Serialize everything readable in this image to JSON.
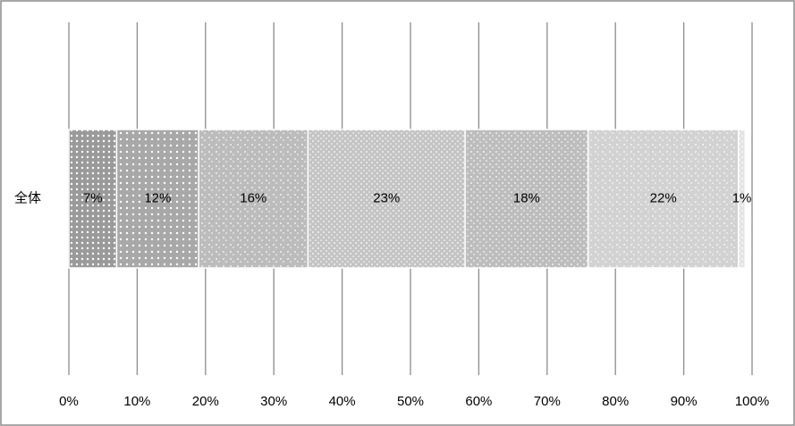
{
  "chart_data": {
    "type": "stacked-bar-horizontal",
    "categories": [
      "全体"
    ],
    "series": [
      {
        "color": "#9a9a9a",
        "values": [
          7
        ],
        "value_labels": [
          "7%"
        ]
      },
      {
        "color": "#a8a8a8",
        "values": [
          12
        ],
        "value_labels": [
          "12%"
        ]
      },
      {
        "color": "#bcbcbc",
        "values": [
          16
        ],
        "value_labels": [
          "16%"
        ]
      },
      {
        "color": "#c4c4c4",
        "values": [
          23
        ],
        "value_labels": [
          "23%"
        ]
      },
      {
        "color": "#bdbdbd",
        "values": [
          18
        ],
        "value_labels": [
          "18%"
        ]
      },
      {
        "color": "#d2d2d2",
        "values": [
          22
        ],
        "value_labels": [
          "22%"
        ]
      },
      {
        "color": "#e4e4e4",
        "values": [
          1
        ],
        "value_labels": [
          "1%"
        ]
      }
    ],
    "xlim": [
      0,
      100
    ],
    "xticks": [
      {
        "value": 0,
        "label": "0%"
      },
      {
        "value": 10,
        "label": "10%"
      },
      {
        "value": 20,
        "label": "20%"
      },
      {
        "value": 30,
        "label": "30%"
      },
      {
        "value": 40,
        "label": "40%"
      },
      {
        "value": 50,
        "label": "50%"
      },
      {
        "value": 60,
        "label": "60%"
      },
      {
        "value": 70,
        "label": "70%"
      },
      {
        "value": 80,
        "label": "80%"
      },
      {
        "value": 90,
        "label": "90%"
      },
      {
        "value": 100,
        "label": "100%"
      }
    ],
    "grid": true
  }
}
